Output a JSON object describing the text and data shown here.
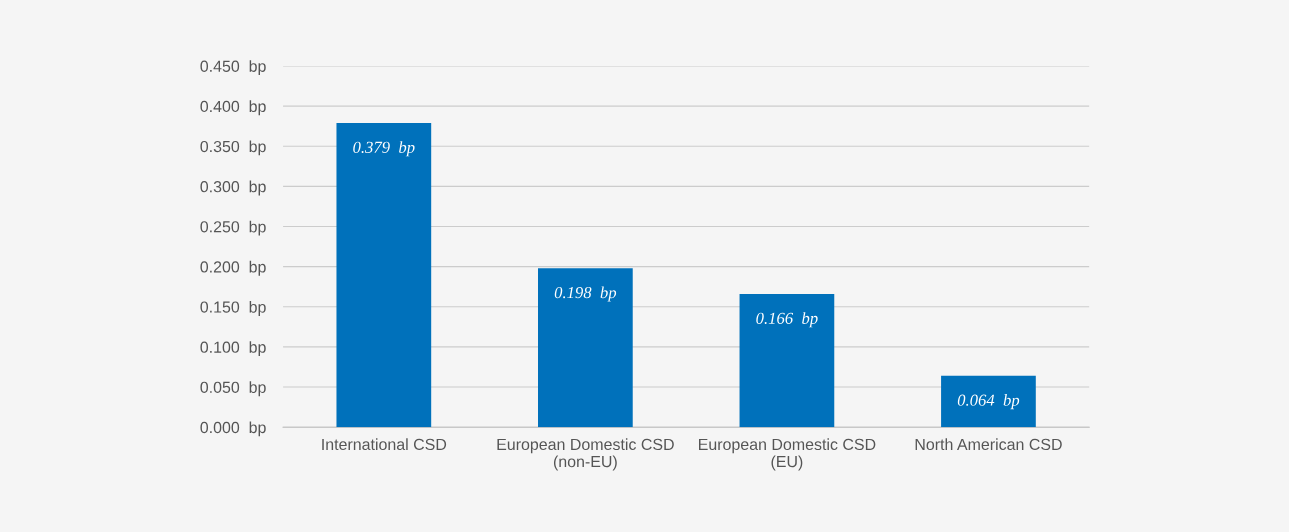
{
  "chart_data": {
    "type": "bar",
    "categories": [
      "International CSD",
      "European Domestic CSD\n(non-EU)",
      "European Domestic CSD\n(EU)",
      "North American CSD"
    ],
    "values": [
      0.379,
      0.198,
      0.166,
      0.064
    ],
    "color": "#0071bb",
    "value_labels": [
      "0.379  bp",
      "0.198  bp",
      "0.166  bp",
      "0.064  bp"
    ],
    "ylim": [
      0,
      0.45
    ],
    "yticks": [
      {
        "value": 0,
        "label": "0.000  bp"
      },
      {
        "value": 0.05,
        "label": "0.050  bp"
      },
      {
        "value": 0.1,
        "label": "0.100  bp"
      },
      {
        "value": 0.15,
        "label": "0.150  bp"
      },
      {
        "value": 0.2,
        "label": "0.200  bp"
      },
      {
        "value": 0.25,
        "label": "0.250  bp"
      },
      {
        "value": 0.3,
        "label": "0.300  bp"
      },
      {
        "value": 0.35,
        "label": "0.350  bp"
      },
      {
        "value": 0.4,
        "label": "0.400  bp"
      },
      {
        "value": 0.45,
        "label": "0.450  bp"
      }
    ],
    "grid": "y"
  }
}
